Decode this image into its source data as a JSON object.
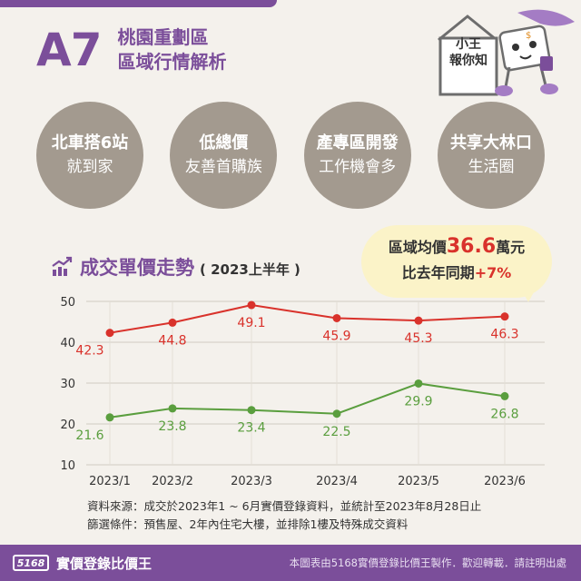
{
  "header": {
    "code": "A7",
    "title_line1": "桃園重劃區",
    "title_line2": "區域行情解析"
  },
  "mascot": {
    "line1": "小王",
    "line2": "報你知"
  },
  "features": [
    {
      "line1": "北車搭6站",
      "line2": "就到家"
    },
    {
      "line1": "低總價",
      "line2": "友善首購族"
    },
    {
      "line1": "產專區開發",
      "line2": "工作機會多"
    },
    {
      "line1": "共享大林口",
      "line2": "生活圈"
    }
  ],
  "section": {
    "title": "成交單價走勢",
    "subtitle": "( 2023上半年 )"
  },
  "callout": {
    "avg_label": "區域均價",
    "avg_value": "36.6",
    "avg_unit": "萬元",
    "yoy_label": "比去年同期",
    "yoy_value": "+7%"
  },
  "colors": {
    "brand": "#7b4e9a",
    "red_series": "#d9322b",
    "green_series": "#5a9e3e"
  },
  "chart_data": {
    "type": "line",
    "categories": [
      "2023/1",
      "2023/2",
      "2023/3",
      "2023/4",
      "2023/5",
      "2023/6"
    ],
    "series": [
      {
        "values": [
          42.3,
          44.8,
          49.1,
          45.9,
          45.3,
          46.3
        ]
      },
      {
        "values": [
          21.6,
          23.8,
          23.4,
          22.5,
          29.9,
          26.8
        ]
      }
    ],
    "ylim": [
      10,
      50
    ],
    "yticks": [
      "10",
      "20",
      "30",
      "40",
      "50"
    ],
    "grid": true
  },
  "notes": {
    "line1": "資料來源：成交於2023年1 ~ 6月實價登錄資料，並統計至2023年8月28日止",
    "line2": "篩選條件：預售屋、2年內住宅大樓，並排除1樓及特殊成交資料"
  },
  "footer": {
    "logo": "5168",
    "brand": "實價登錄比價王",
    "credit": "本圖表由5168實價登錄比價王製作．歡迎轉載．請註明出處"
  }
}
